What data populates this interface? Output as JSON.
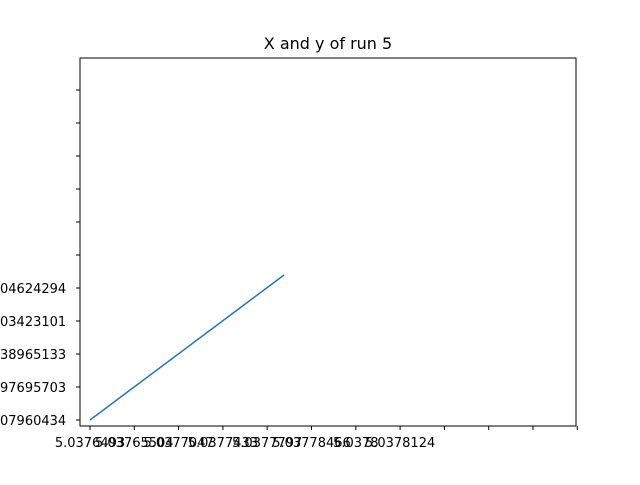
{
  "chart_data": {
    "type": "line",
    "title": "X and y of run 5",
    "xlabel": "",
    "ylabel": "",
    "grid": false,
    "series": [
      {
        "color": "#1f77b4",
        "points": [
          {
            "x": 5.0376,
            "y": 1.0
          },
          {
            "x": 5.038,
            "y": 1.4
          }
        ]
      }
    ],
    "x_tick_labels": [
      "5.0376493",
      "5.03765504",
      "5.0377047",
      "5.0377433",
      "5.0377797",
      "5.03778466",
      "5.0378",
      "5.0378124",
      "",
      "",
      "",
      ""
    ],
    "y_tick_labels": [
      "07960434",
      "97695703",
      "38965133",
      "03423101",
      "04624294",
      "",
      "",
      "",
      "",
      "",
      ""
    ]
  }
}
